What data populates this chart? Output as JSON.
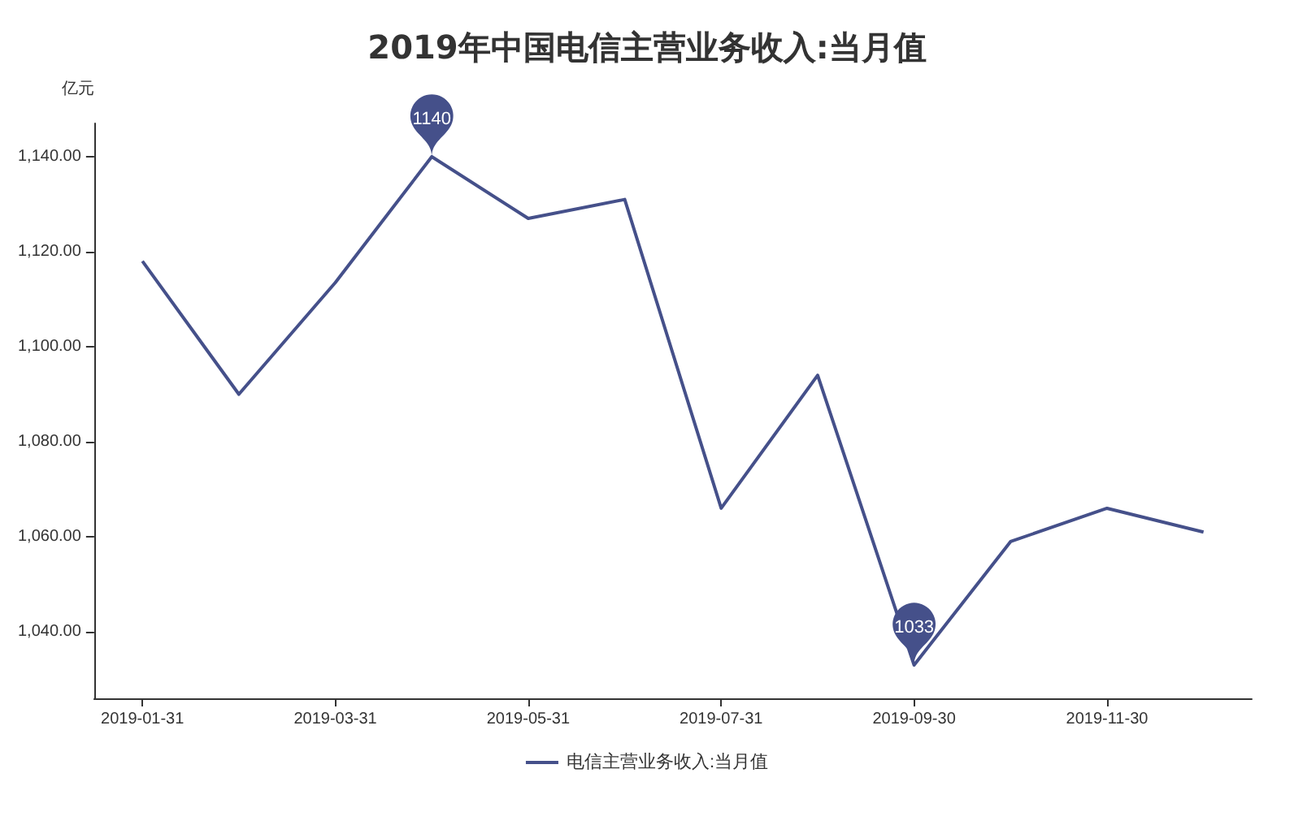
{
  "chart_data": {
    "type": "line",
    "title": "2019年中国电信主营业务收入:当月值",
    "ylabel": "亿元",
    "categories": [
      "2019-01-31",
      null,
      "2019-03-31",
      null,
      "2019-05-31",
      null,
      "2019-07-31",
      null,
      "2019-09-30",
      null,
      "2019-11-30",
      null
    ],
    "series": [
      {
        "name": "电信主营业务收入:当月值",
        "color": "#45508a",
        "values": [
          1118,
          1090,
          1113.5,
          1140,
          1127,
          1131,
          1066,
          1094,
          1033,
          1059,
          1066,
          1061
        ]
      }
    ],
    "ylim": [
      1026,
      1147
    ],
    "yticks": [
      {
        "value": 1040,
        "label": "1,040.00"
      },
      {
        "value": 1060,
        "label": "1,060.00"
      },
      {
        "value": 1080,
        "label": "1,080.00"
      },
      {
        "value": 1100,
        "label": "1,100.00"
      },
      {
        "value": 1120,
        "label": "1,120.00"
      },
      {
        "value": 1140,
        "label": "1,140.00"
      }
    ],
    "annotations": [
      {
        "text": "1140",
        "y": 1140
      },
      {
        "text": "1033",
        "y": 1033
      }
    ],
    "legend": "bottom",
    "grid": false,
    "marker": "none",
    "line_style": "solid"
  }
}
